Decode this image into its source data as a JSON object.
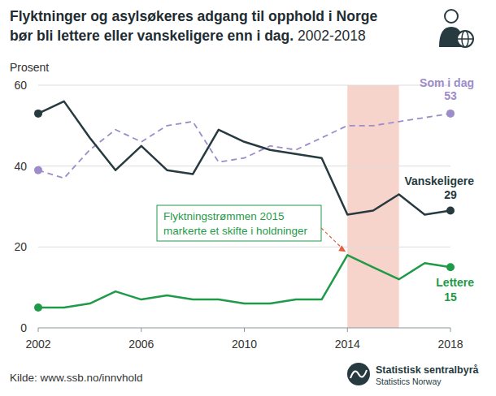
{
  "chart_data": {
    "type": "line",
    "title": "Flyktninger og asylsøkeres adgang til opphold i Norge bør bli lettere eller vanskeligere enn i dag.",
    "subtitle": "2002-2018",
    "y_label": "Prosent",
    "source": "Kilde: www.ssb.no/innvhold",
    "logo": {
      "name": "Statistisk sentralbyrå",
      "name_en": "Statistics Norway"
    },
    "x": [
      2002,
      2003,
      2004,
      2005,
      2006,
      2007,
      2008,
      2009,
      2010,
      2011,
      2012,
      2013,
      2014,
      2015,
      2016,
      2017,
      2018
    ],
    "series": [
      {
        "name": "Som i dag",
        "color": "#9c8cc9",
        "line_style": "dashed",
        "marker": "ends",
        "values": [
          39,
          37,
          44,
          49,
          46,
          50,
          51,
          41,
          42,
          45,
          44,
          47,
          50,
          50,
          51,
          52,
          53
        ]
      },
      {
        "name": "Vanskeligere",
        "color": "#263a40",
        "line_style": "solid",
        "marker": "ends",
        "values": [
          53,
          56,
          47,
          39,
          45,
          39,
          38,
          49,
          46,
          44,
          43,
          42,
          28,
          29,
          33,
          28,
          29
        ]
      },
      {
        "name": "Lettere",
        "color": "#1f9a48",
        "line_style": "solid",
        "marker": "ends",
        "values": [
          5,
          5,
          6,
          9,
          7,
          8,
          7,
          7,
          6,
          6,
          7,
          7,
          18,
          15,
          12,
          16,
          15
        ]
      }
    ],
    "highlight": [
      2014,
      2016
    ],
    "annotation": {
      "lines": [
        "Flyktningstrømmen 2015",
        "markerte et skifte i holdninger"
      ],
      "x": 2014,
      "y": 18
    },
    "xlim": [
      2002,
      2018
    ],
    "xticks": [
      2002,
      2006,
      2010,
      2014,
      2018
    ],
    "ylim": [
      0,
      60
    ],
    "yticks": [
      0,
      20,
      40,
      60
    ],
    "grid": true
  }
}
